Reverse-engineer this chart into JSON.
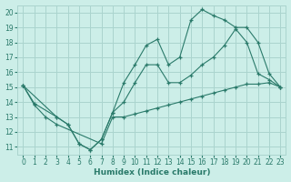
{
  "xlabel": "Humidex (Indice chaleur)",
  "bg_color": "#cceee8",
  "grid_color": "#aad4ce",
  "line_color": "#2a7a6a",
  "xlim": [
    -0.5,
    23.5
  ],
  "ylim": [
    10.5,
    20.5
  ],
  "xticks": [
    0,
    1,
    2,
    3,
    4,
    5,
    6,
    7,
    8,
    9,
    10,
    11,
    12,
    13,
    14,
    15,
    16,
    17,
    18,
    19,
    20,
    21,
    22,
    23
  ],
  "yticks": [
    11,
    12,
    13,
    14,
    15,
    16,
    17,
    18,
    19,
    20
  ],
  "line1_x": [
    0,
    1,
    3,
    4,
    5,
    6,
    7,
    8,
    9,
    10,
    11,
    12,
    13,
    14,
    15,
    16,
    17,
    18,
    19,
    20,
    21,
    22,
    23
  ],
  "line1_y": [
    15.1,
    13.9,
    13.0,
    12.5,
    11.2,
    10.8,
    11.5,
    13.3,
    15.3,
    16.5,
    17.8,
    18.2,
    16.5,
    17.0,
    19.5,
    20.2,
    19.8,
    19.5,
    19.0,
    19.0,
    18.0,
    15.9,
    15.0
  ],
  "line2_x": [
    0,
    3,
    4,
    5,
    6,
    7,
    8,
    9,
    10,
    11,
    12,
    13,
    14,
    15,
    16,
    17,
    18,
    19,
    20,
    21,
    22,
    23
  ],
  "line2_y": [
    15.1,
    13.0,
    12.5,
    11.2,
    10.8,
    11.5,
    13.3,
    14.0,
    15.3,
    16.5,
    16.5,
    15.3,
    15.3,
    15.8,
    16.5,
    17.0,
    17.8,
    18.9,
    18.0,
    15.9,
    15.5,
    15.0
  ],
  "line3_x": [
    0,
    1,
    2,
    3,
    7,
    8,
    9,
    10,
    11,
    12,
    13,
    14,
    15,
    16,
    17,
    18,
    19,
    20,
    21,
    22,
    23
  ],
  "line3_y": [
    15.1,
    13.8,
    13.0,
    12.5,
    11.2,
    13.0,
    13.0,
    13.2,
    13.4,
    13.6,
    13.8,
    14.0,
    14.2,
    14.4,
    14.6,
    14.8,
    15.0,
    15.2,
    15.2,
    15.3,
    15.0
  ]
}
